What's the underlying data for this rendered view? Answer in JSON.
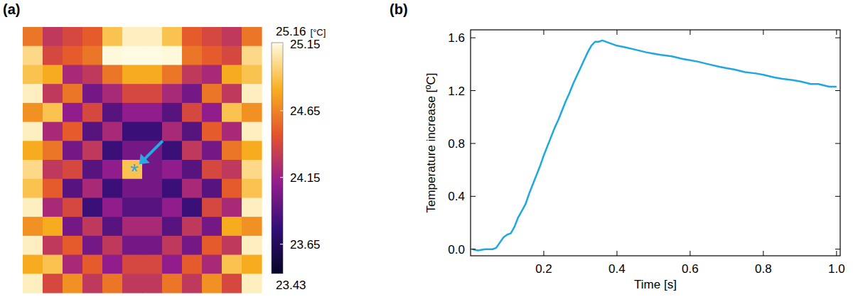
{
  "chart_data": [
    {
      "type": "heatmap",
      "panel_label": "(a)",
      "cells": [
        [
          24.6,
          24.3,
          24.4,
          24.5,
          24.9,
          25.1,
          25.1,
          24.9,
          24.5,
          24.4,
          24.3,
          24.6
        ],
        [
          25.0,
          24.4,
          24.5,
          24.6,
          25.15,
          25.16,
          25.16,
          25.15,
          24.6,
          24.5,
          24.4,
          25.0
        ],
        [
          24.9,
          24.8,
          24.2,
          24.3,
          24.6,
          24.8,
          24.8,
          24.6,
          24.3,
          24.2,
          24.8,
          24.9
        ],
        [
          25.1,
          24.3,
          24.6,
          24.0,
          24.2,
          24.4,
          24.4,
          24.2,
          24.0,
          24.6,
          24.3,
          25.1
        ],
        [
          24.7,
          24.9,
          24.1,
          24.4,
          23.9,
          24.1,
          24.1,
          23.9,
          24.4,
          24.1,
          24.9,
          24.7
        ],
        [
          25.1,
          24.2,
          24.5,
          23.9,
          24.2,
          23.8,
          23.8,
          24.2,
          23.9,
          24.5,
          24.2,
          25.1
        ],
        [
          24.8,
          24.6,
          24.0,
          24.3,
          23.8,
          24.0,
          24.0,
          23.8,
          24.3,
          24.0,
          24.6,
          24.8
        ],
        [
          25.0,
          24.3,
          24.4,
          23.9,
          24.1,
          24.9,
          24.0,
          24.1,
          23.9,
          24.4,
          24.3,
          25.0
        ],
        [
          24.9,
          24.5,
          23.9,
          24.2,
          23.8,
          24.0,
          24.0,
          23.8,
          24.2,
          23.9,
          24.5,
          24.9
        ],
        [
          25.1,
          24.2,
          24.4,
          23.8,
          24.1,
          23.9,
          23.9,
          24.1,
          23.8,
          24.4,
          24.2,
          25.1
        ],
        [
          24.7,
          24.8,
          24.0,
          24.3,
          23.9,
          24.2,
          24.2,
          23.9,
          24.3,
          24.0,
          24.8,
          24.7
        ],
        [
          25.1,
          24.3,
          24.5,
          24.0,
          24.3,
          24.0,
          24.0,
          24.3,
          24.0,
          24.5,
          24.3,
          25.1
        ],
        [
          24.8,
          24.9,
          24.2,
          24.5,
          24.1,
          24.4,
          24.4,
          24.1,
          24.5,
          24.2,
          24.9,
          24.8
        ],
        [
          25.1,
          24.4,
          24.7,
          24.3,
          24.6,
          24.3,
          24.3,
          24.6,
          24.3,
          24.7,
          24.4,
          25.1
        ]
      ],
      "colorbar_range": [
        23.43,
        25.16
      ],
      "colorbar_ticks": [
        23.65,
        24.15,
        24.65,
        25.15
      ],
      "colorbar_label": "[°C]",
      "annotations": [
        {
          "text": "*",
          "x": 5.6,
          "y": 7.5
        }
      ]
    },
    {
      "type": "line",
      "panel_label": "(b)",
      "x_label": "Time [s]",
      "y_label": "Temperature increase [ºC]",
      "color": "#1ea7e1",
      "x": [
        0.005,
        0.02,
        0.04,
        0.06,
        0.07,
        0.08,
        0.09,
        0.1,
        0.11,
        0.12,
        0.13,
        0.14,
        0.15,
        0.16,
        0.17,
        0.18,
        0.19,
        0.2,
        0.21,
        0.22,
        0.23,
        0.24,
        0.25,
        0.26,
        0.27,
        0.28,
        0.29,
        0.3,
        0.31,
        0.32,
        0.33,
        0.34,
        0.35,
        0.36,
        0.38,
        0.4,
        0.42,
        0.45,
        0.48,
        0.5,
        0.52,
        0.55,
        0.58,
        0.6,
        0.62,
        0.65,
        0.68,
        0.7,
        0.72,
        0.75,
        0.78,
        0.8,
        0.83,
        0.85,
        0.88,
        0.9,
        0.93,
        0.95,
        0.98,
        1.0
      ],
      "values": [
        0.0,
        -0.01,
        0.0,
        0.0,
        0.01,
        0.05,
        0.09,
        0.11,
        0.12,
        0.17,
        0.24,
        0.29,
        0.34,
        0.42,
        0.49,
        0.56,
        0.63,
        0.71,
        0.78,
        0.85,
        0.92,
        0.98,
        1.05,
        1.12,
        1.18,
        1.25,
        1.31,
        1.37,
        1.43,
        1.49,
        1.54,
        1.57,
        1.57,
        1.58,
        1.56,
        1.54,
        1.53,
        1.51,
        1.49,
        1.48,
        1.47,
        1.46,
        1.44,
        1.43,
        1.42,
        1.4,
        1.38,
        1.37,
        1.36,
        1.34,
        1.33,
        1.32,
        1.3,
        1.29,
        1.28,
        1.27,
        1.25,
        1.25,
        1.23,
        1.23
      ],
      "xlim": [
        0,
        1.01
      ],
      "ylim": [
        -0.05,
        1.66
      ],
      "xticks": [
        0.2,
        0.4,
        0.6,
        0.8,
        {
          "value": 1,
          "label": "1.0"
        }
      ],
      "yticks": [
        {
          "value": 0,
          "label": "0.0"
        },
        0.4,
        0.8,
        1.2,
        1.6
      ],
      "grid": false
    }
  ]
}
